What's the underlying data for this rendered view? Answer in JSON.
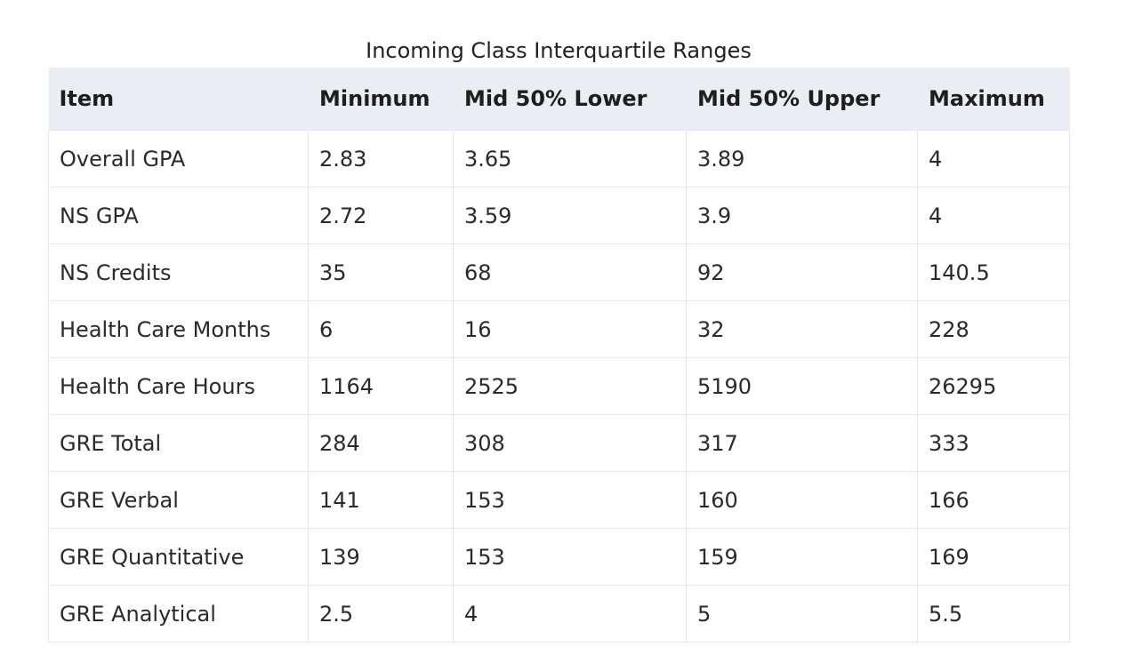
{
  "table": {
    "caption": "Incoming Class Interquartile Ranges",
    "headers": [
      "Item",
      "Minimum",
      "Mid 50% Lower",
      "Mid 50% Upper",
      "Maximum"
    ],
    "rows": [
      [
        "Overall GPA",
        "2.83",
        "3.65",
        "3.89",
        "4"
      ],
      [
        "NS GPA",
        "2.72",
        "3.59",
        "3.9",
        "4"
      ],
      [
        "NS Credits",
        "35",
        "68",
        "92",
        "140.5"
      ],
      [
        "Health Care Months",
        "6",
        "16",
        "32",
        "228"
      ],
      [
        "Health Care Hours",
        "1164",
        "2525",
        "5190",
        "26295"
      ],
      [
        "GRE Total",
        "284",
        "308",
        "317",
        "333"
      ],
      [
        "GRE Verbal",
        "141",
        "153",
        "160",
        "166"
      ],
      [
        "GRE Quantitative",
        "139",
        "153",
        "159",
        "169"
      ],
      [
        "GRE Analytical",
        "2.5",
        "4",
        "5",
        "5.5"
      ]
    ]
  }
}
